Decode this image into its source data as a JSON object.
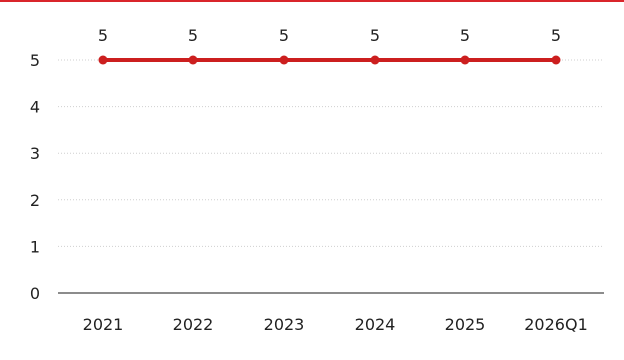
{
  "chart_data": {
    "type": "line",
    "categories": [
      "2021",
      "2022",
      "2023",
      "2024",
      "2025",
      "2026Q1"
    ],
    "series": [
      {
        "values": [
          5,
          5,
          5,
          5,
          5,
          5
        ]
      }
    ],
    "data_labels": [
      "5",
      "5",
      "5",
      "5",
      "5",
      "5"
    ],
    "y_ticks": [
      "0",
      "1",
      "2",
      "3",
      "4",
      "5"
    ],
    "ylim": [
      0,
      5
    ],
    "grid": true,
    "colors": {
      "line": "#cc1f1f",
      "marker": "#cc1f1f",
      "grid": "#cfcfcf",
      "axis": "#666666",
      "top_rule": "#d9252b"
    }
  }
}
